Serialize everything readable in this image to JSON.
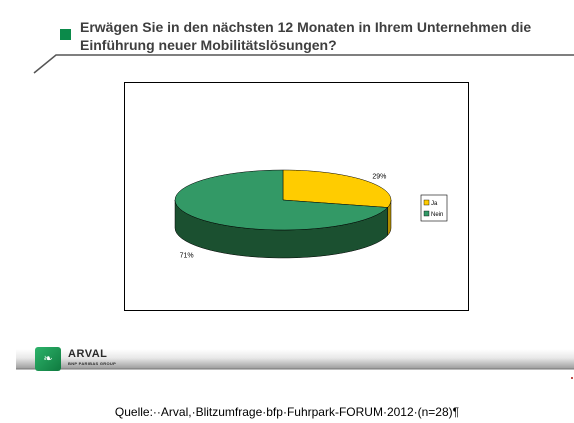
{
  "slide": {
    "title": "Erwägen Sie in den nächsten 12 Monaten in Ihrem Unternehmen die Einführung neuer Mobilitätslösungen?",
    "accent_color": "#0b8a4a"
  },
  "brand": {
    "name": "ARVAL",
    "group": "BNP PARIBAS GROUP",
    "logo_icon": "arval-leaf-logo"
  },
  "source_note": "Quelle:··Arval,·Blitzumfrage·bfp·Fuhrpark-FORUM·2012·(n=28)¶",
  "chart_data": {
    "type": "pie",
    "title": "",
    "style": "3d-pie",
    "legend_position": "right",
    "categories": [
      "Ja",
      "Nein"
    ],
    "values": [
      29,
      71
    ],
    "labels": [
      "29%",
      "71%"
    ],
    "colors": [
      "#ffcc00",
      "#339966"
    ],
    "side_colors": [
      "#b08c00",
      "#1b5030"
    ]
  }
}
